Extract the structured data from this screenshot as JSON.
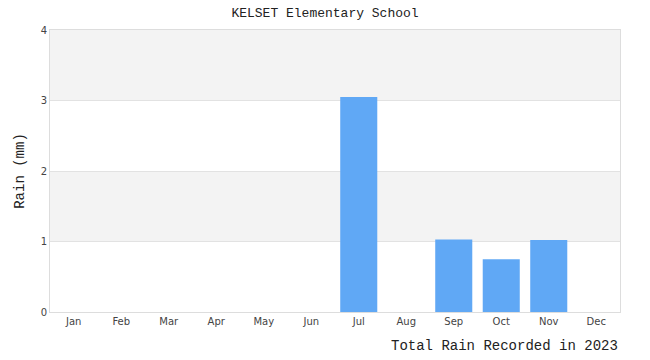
{
  "chart_data": {
    "type": "bar",
    "title": "KELSET Elementary School",
    "ylabel": "Rain (mm)",
    "xlabel": "Total Rain Recorded in 2023",
    "categories": [
      "Jan",
      "Feb",
      "Mar",
      "Apr",
      "May",
      "Jun",
      "Jul",
      "Aug",
      "Sep",
      "Oct",
      "Nov",
      "Dec"
    ],
    "values": [
      0,
      0,
      0,
      0,
      0,
      0,
      3.05,
      0,
      1.03,
      0.75,
      1.02,
      0
    ],
    "color": "#60a8f5",
    "ylim": [
      0,
      4
    ],
    "yticks": [
      0,
      1,
      2,
      3,
      4
    ],
    "grid": true
  }
}
